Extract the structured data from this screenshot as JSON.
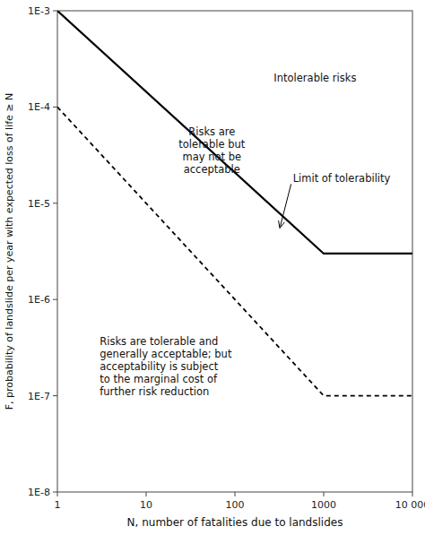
{
  "chart_data": {
    "type": "line",
    "xlabel": "N, number of fatalities due to landslides",
    "ylabel": "F, probability of landslide per year with expected loss of life ≥ N",
    "log": true,
    "grid": false,
    "x": [
      1,
      1000,
      10000
    ],
    "series": [
      {
        "values": [
          0.001,
          3e-06,
          3e-06
        ],
        "color": "#000000",
        "line_style": "solid"
      },
      {
        "values": [
          0.0001,
          1e-07,
          1e-07
        ],
        "color": "#000000",
        "line_style": "dashed"
      }
    ],
    "xlim": [
      1,
      10000
    ],
    "ylim": [
      1e-08,
      0.001
    ],
    "xticks": [
      1,
      10,
      100,
      1000,
      {
        "value": 10000,
        "label": "10 000"
      }
    ],
    "yticks": [
      {
        "value": 1e-08,
        "label": "1E-8"
      },
      {
        "value": 1e-07,
        "label": "1E-7"
      },
      {
        "value": 1e-06,
        "label": "1E-6"
      },
      {
        "value": 1e-05,
        "label": "1E-5"
      },
      {
        "value": 0.0001,
        "label": "1E-4"
      },
      {
        "value": 0.001,
        "label": "1E-3"
      }
    ],
    "annotations": [
      {
        "text": "Intolerable risks",
        "x": 800,
        "y": 0.0002
      },
      {
        "text": "Risks are\ntolerable but\nmay not be\nacceptable",
        "x": 55,
        "y": 3.5e-05
      },
      {
        "text": "Limit of tolerability",
        "x": 450,
        "y": 1.8e-05,
        "arrow_x": 320,
        "arrow_y": 5.5e-06
      },
      {
        "text": "Risks are tolerable and\ngenerally acceptable; but\nacceptability is subject\nto the marginal cost of\nfurther risk reduction",
        "x": 3,
        "y": 2e-07
      }
    ]
  }
}
